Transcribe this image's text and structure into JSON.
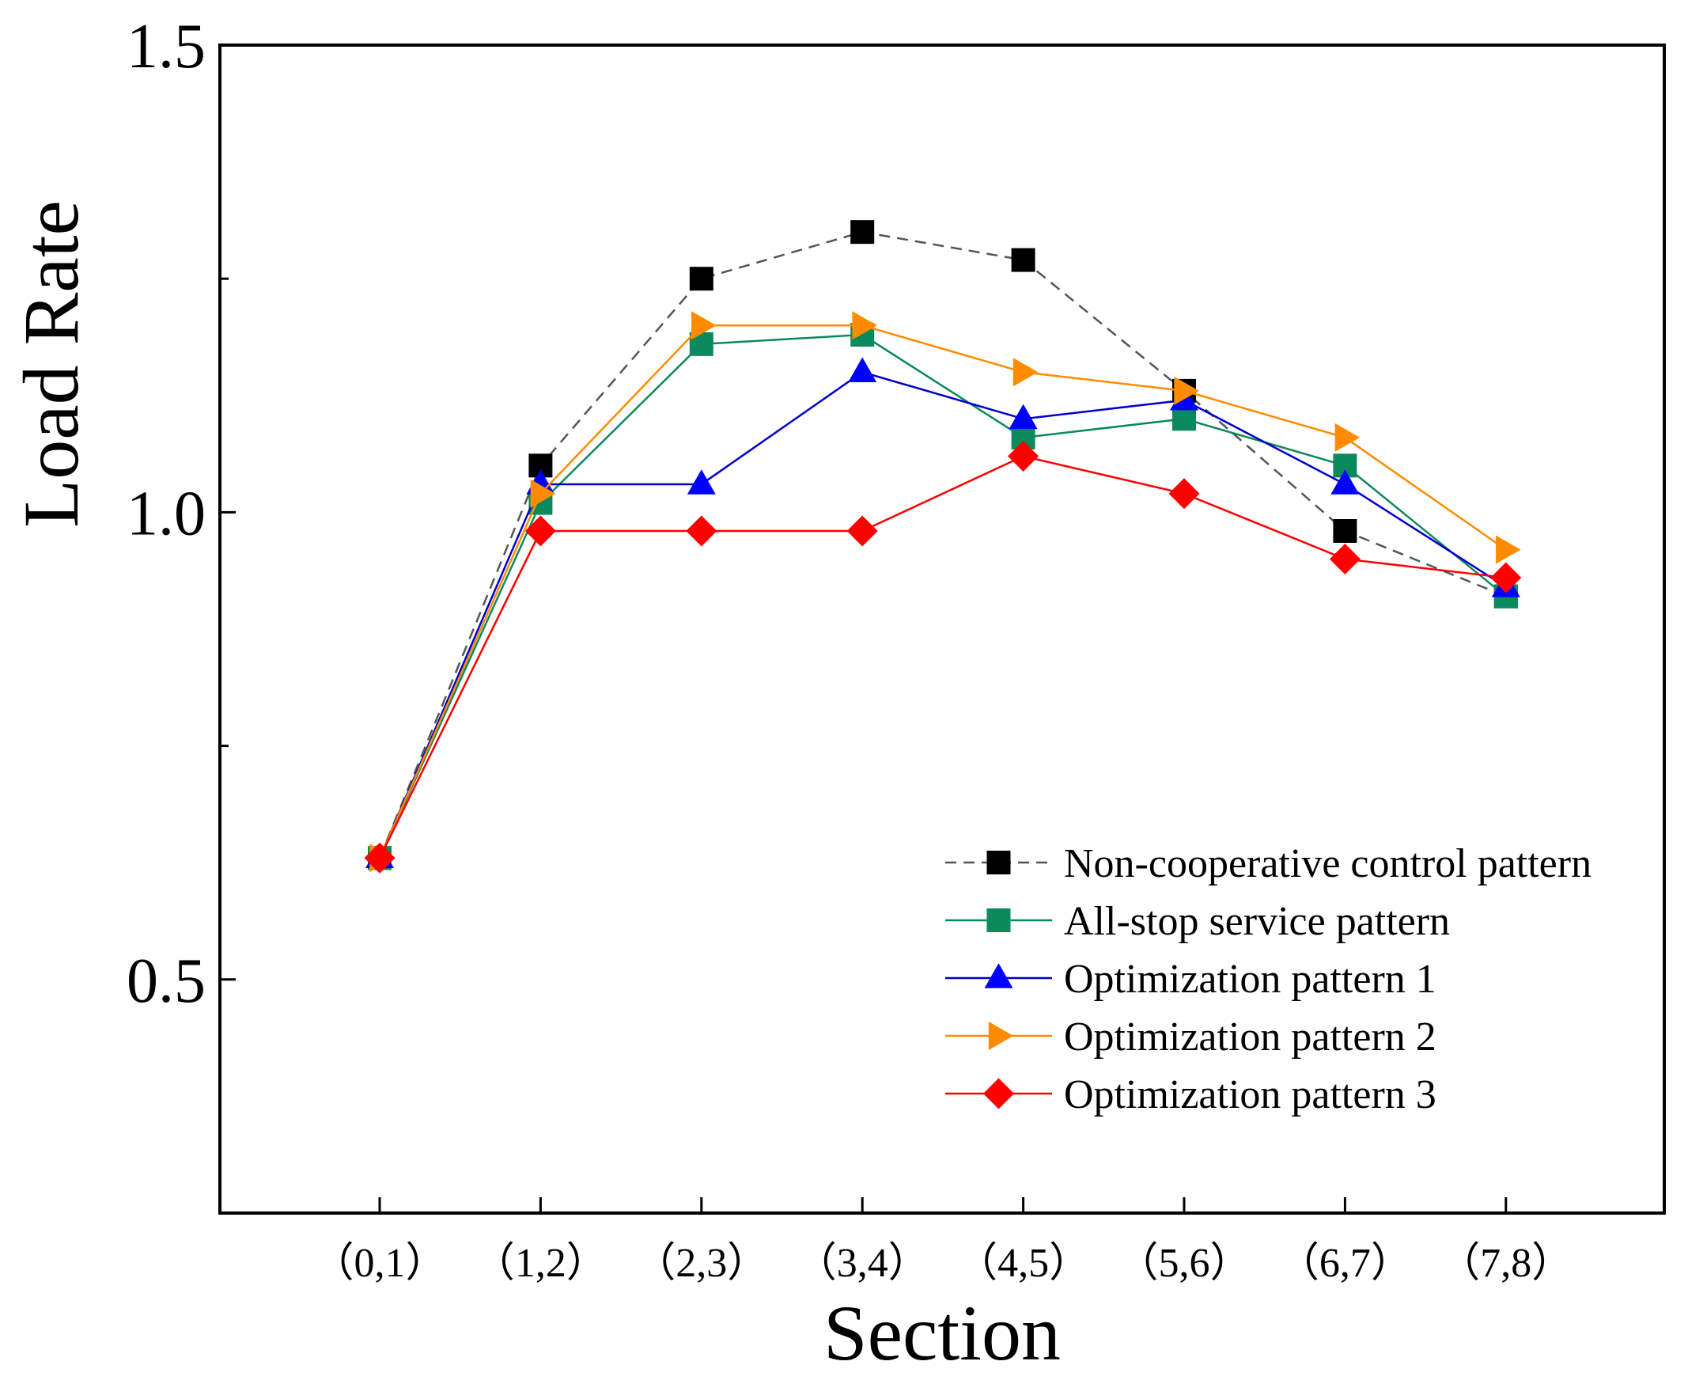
{
  "chart_data": {
    "type": "line",
    "xlabel": "Section",
    "ylabel": "Load Rate",
    "ylim": [
      0.25,
      1.5
    ],
    "yticks": [
      0.5,
      1.0,
      1.5
    ],
    "ytick_labels": [
      "0.5",
      "1.0",
      "1.5"
    ],
    "categories": [
      "（0,1）",
      "（1,2）",
      "（2,3）",
      "（3,4）",
      "（4,5）",
      "（5,6）",
      "（6,7）",
      "（7,8）"
    ],
    "legend_position": "lower-right",
    "series": [
      {
        "name": "Non-cooperative control pattern",
        "color": "#000000",
        "line_color": "#555555",
        "dashed": true,
        "marker": "square",
        "values": [
          0.63,
          1.05,
          1.25,
          1.3,
          1.27,
          1.13,
          0.98,
          0.91
        ]
      },
      {
        "name": "All-stop service pattern",
        "color": "#0a8a5a",
        "line_color": "#0a8a5a",
        "dashed": false,
        "marker": "square",
        "values": [
          0.63,
          1.01,
          1.18,
          1.19,
          1.08,
          1.1,
          1.05,
          0.91
        ]
      },
      {
        "name": "Optimization pattern 1",
        "color": "#0000ff",
        "line_color": "#0000cc",
        "dashed": false,
        "marker": "triangle-up",
        "values": [
          0.63,
          1.03,
          1.03,
          1.15,
          1.1,
          1.12,
          1.03,
          0.92
        ]
      },
      {
        "name": "Optimization pattern 2",
        "color": "#ff8c00",
        "line_color": "#ff8c00",
        "dashed": false,
        "marker": "triangle-right",
        "values": [
          0.63,
          1.02,
          1.2,
          1.2,
          1.15,
          1.13,
          1.08,
          0.96
        ]
      },
      {
        "name": "Optimization pattern 3",
        "color": "#ff0000",
        "line_color": "#ff0000",
        "dashed": false,
        "marker": "diamond",
        "values": [
          0.63,
          0.98,
          0.98,
          0.98,
          1.06,
          1.02,
          0.95,
          0.93
        ]
      }
    ]
  }
}
